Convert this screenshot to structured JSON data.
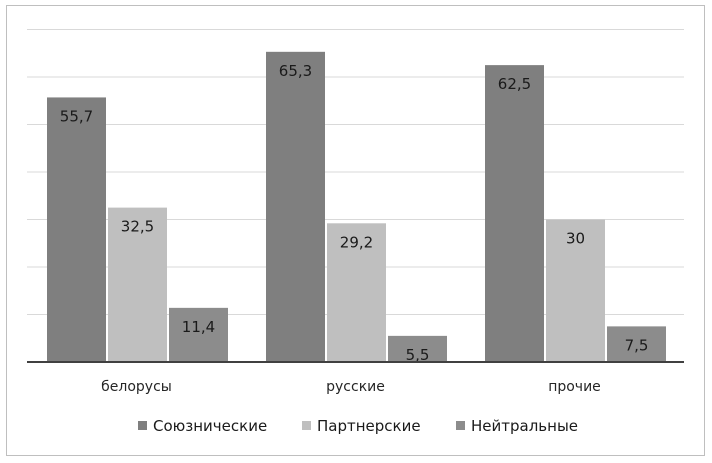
{
  "chart_data": {
    "type": "bar",
    "categories": [
      "белорусы",
      "русские",
      "прочие"
    ],
    "series": [
      {
        "name": "Союзнические",
        "values": [
          55.7,
          65.3,
          62.5
        ],
        "labels": [
          "55,7",
          "65,3",
          "62,5"
        ],
        "color": "#7f7f7f"
      },
      {
        "name": "Партнерские",
        "values": [
          32.5,
          29.2,
          30
        ],
        "labels": [
          "32,5",
          "29,2",
          "30"
        ],
        "color": "#bfbfbf"
      },
      {
        "name": "Нейтральные",
        "values": [
          11.4,
          5.5,
          7.5
        ],
        "labels": [
          "11,4",
          "5,5",
          "7,5"
        ],
        "color": "#8c8c8c"
      }
    ],
    "ylim": [
      0,
      70
    ],
    "grid": true,
    "legend": "bottom"
  }
}
